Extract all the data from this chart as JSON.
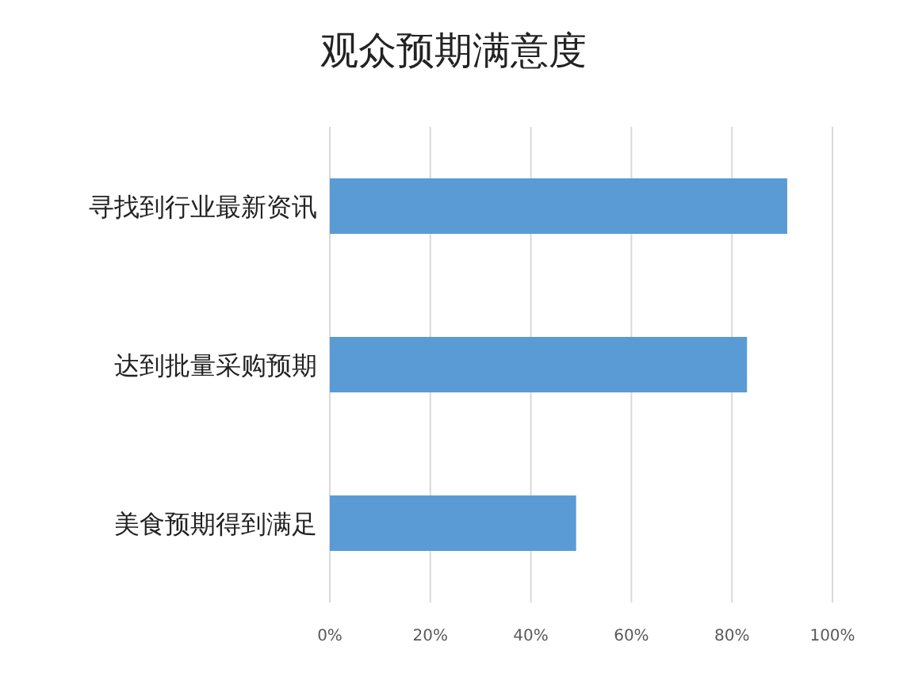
{
  "chart_data": {
    "type": "bar",
    "orientation": "horizontal",
    "title": "观众预期满意度",
    "categories": [
      "寻找到行业最新资讯",
      "达到批量采购预期",
      "美食预期得到满足"
    ],
    "values": [
      91,
      83,
      49
    ],
    "color": "#5b9bd5",
    "xlim": [
      0,
      100
    ],
    "xticks": [
      {
        "value": 0,
        "label": "0%"
      },
      {
        "value": 20,
        "label": "20%"
      },
      {
        "value": 40,
        "label": "40%"
      },
      {
        "value": 60,
        "label": "60%"
      },
      {
        "value": 80,
        "label": "80%"
      },
      {
        "value": 100,
        "label": "100%"
      }
    ],
    "grid": "x"
  }
}
